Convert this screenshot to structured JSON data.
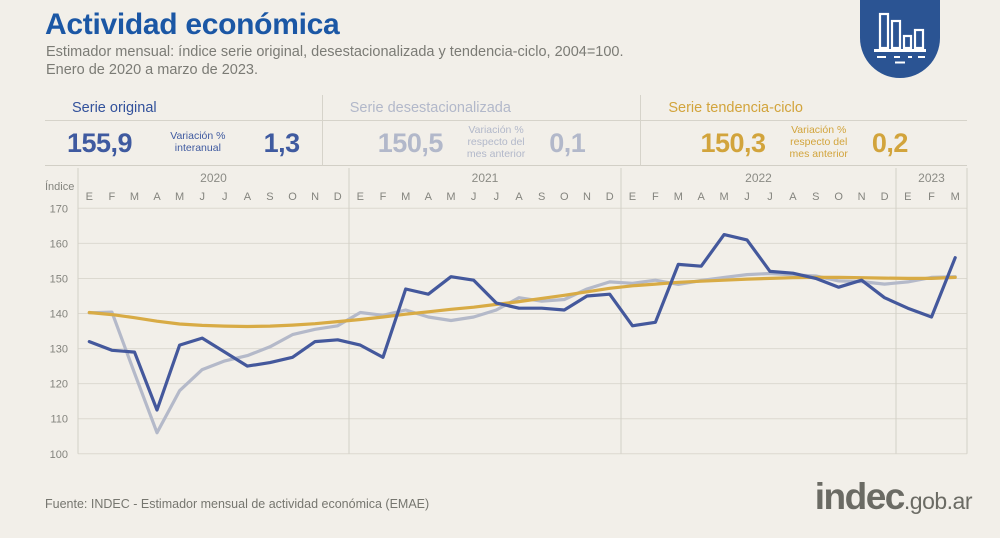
{
  "header": {
    "title": "Actividad económica",
    "subtitle_line1": "Estimador mensual: índice serie original, desestacionalizada y tendencia-ciclo, 2004=100.",
    "subtitle_line2": "Enero de 2020 a marzo de 2023.",
    "badge_icon": "bar-chart-icon"
  },
  "stats": [
    {
      "label": "Serie original",
      "value": "155,9",
      "metric_label_lines": [
        "Variación %",
        "interanual"
      ],
      "metric_value": "1,3",
      "color": "#44589c"
    },
    {
      "label": "Serie desestacionalizada",
      "value": "150,5",
      "metric_label_lines": [
        "Variación %",
        "respecto del",
        "mes anterior"
      ],
      "metric_value": "0,1",
      "color": "#b4b9c9"
    },
    {
      "label": "Serie tendencia-ciclo",
      "value": "150,3",
      "metric_label_lines": [
        "Variación %",
        "respecto del",
        "mes anterior"
      ],
      "metric_value": "0,2",
      "color": "#d8ab45"
    }
  ],
  "chart_data": {
    "type": "line",
    "ylabel": "Índice",
    "ylim": [
      100,
      170
    ],
    "yticks": [
      170,
      160,
      150,
      140,
      130,
      120,
      110,
      100
    ],
    "grid": "horizontal",
    "legend_position": "none",
    "years": [
      {
        "label": "2020",
        "months": 12
      },
      {
        "label": "2021",
        "months": 12
      },
      {
        "label": "2022",
        "months": 12
      },
      {
        "label": "2023",
        "months": 3
      }
    ],
    "month_letters": [
      "E",
      "F",
      "M",
      "A",
      "M",
      "J",
      "J",
      "A",
      "S",
      "O",
      "N",
      "D",
      "E",
      "F",
      "M",
      "A",
      "M",
      "J",
      "J",
      "A",
      "S",
      "O",
      "N",
      "D",
      "E",
      "F",
      "M",
      "A",
      "M",
      "J",
      "J",
      "A",
      "S",
      "O",
      "N",
      "D",
      "E",
      "F",
      "M"
    ],
    "series": [
      {
        "name": "Serie original",
        "color": "#44589c",
        "values": [
          132,
          129.5,
          129,
          112.5,
          131,
          133,
          129,
          125,
          126,
          127.5,
          132,
          132.5,
          131,
          127.5,
          147,
          145.5,
          150.5,
          149.5,
          143,
          141.5,
          141.5,
          141,
          145,
          145.5,
          136.5,
          137.5,
          154,
          153.5,
          162.5,
          161,
          152,
          151.5,
          150,
          147.5,
          149.5,
          144.5,
          141.5,
          139,
          155.9
        ]
      },
      {
        "name": "Serie desestacionalizada",
        "color": "#b4b9c9",
        "values": [
          140.2,
          140.4,
          123,
          106,
          118,
          124,
          126.5,
          128,
          130.5,
          134,
          135.5,
          136.5,
          140.3,
          139.5,
          141,
          139,
          138,
          139,
          141,
          144.5,
          143.5,
          144,
          147,
          149,
          148.6,
          149.5,
          148.3,
          149.4,
          150.3,
          151.1,
          151.4,
          151,
          150.7,
          149.3,
          149.1,
          148.4,
          149,
          150.3,
          150.5
        ]
      },
      {
        "name": "Serie tendencia-ciclo",
        "color": "#d8ab45",
        "values": [
          140.3,
          139.7,
          138.8,
          137.8,
          137,
          136.6,
          136.4,
          136.3,
          136.4,
          136.7,
          137.1,
          137.7,
          138.3,
          139,
          139.8,
          140.5,
          141.2,
          141.8,
          142.6,
          143.4,
          144.3,
          145.2,
          146.2,
          147.2,
          147.9,
          148.4,
          148.9,
          149.2,
          149.5,
          149.8,
          150,
          150.2,
          150.3,
          150.3,
          150.2,
          150.1,
          150,
          150,
          150.3
        ]
      }
    ]
  },
  "footer": {
    "source": "Fuente: INDEC - Estimador mensual de actividad económica (EMAE)",
    "logo_main": "indec",
    "logo_suffix": ".gob.ar"
  }
}
